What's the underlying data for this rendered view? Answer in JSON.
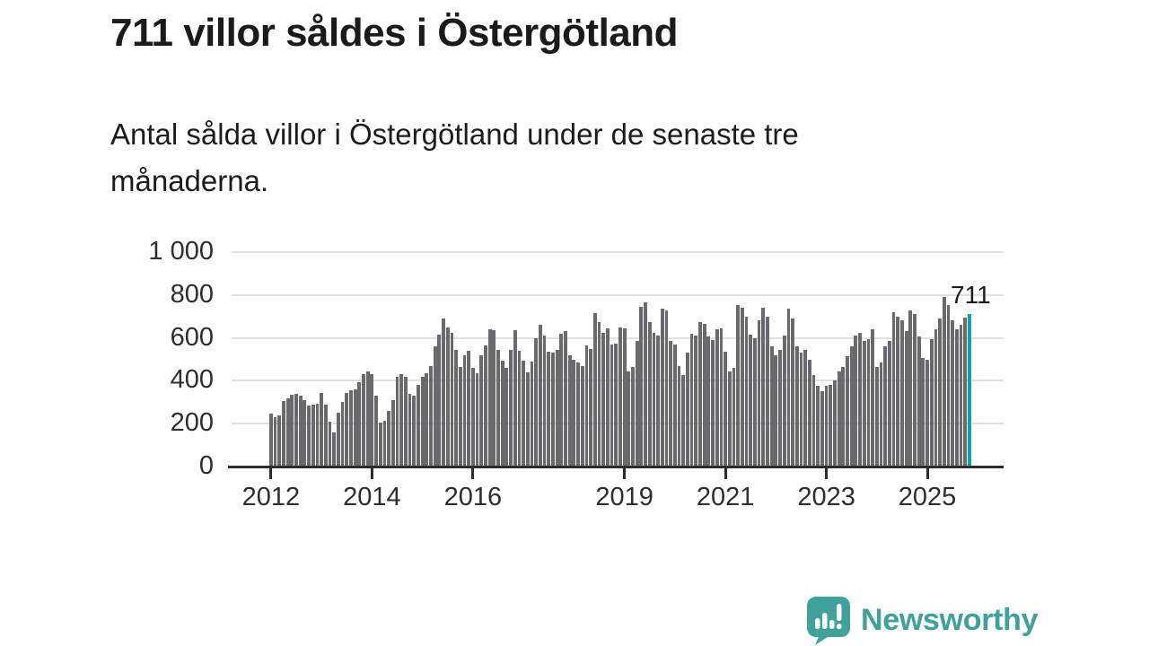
{
  "header": {
    "title": "711 villor såldes i Östergötland",
    "subtitle": "Antal sålda villor i Östergötland under de senaste tre månaderna."
  },
  "chart_data": {
    "type": "bar",
    "title": "711 villor såldes i Östergötland",
    "xlabel": "",
    "ylabel": "",
    "x_start": "2012-01",
    "x_end": "2025-11",
    "values": [
      245,
      230,
      240,
      305,
      320,
      335,
      340,
      330,
      310,
      285,
      290,
      295,
      345,
      290,
      210,
      160,
      250,
      300,
      345,
      355,
      360,
      395,
      430,
      445,
      430,
      330,
      205,
      215,
      260,
      310,
      420,
      430,
      420,
      340,
      330,
      380,
      420,
      435,
      470,
      560,
      615,
      690,
      650,
      625,
      545,
      465,
      520,
      540,
      460,
      435,
      520,
      565,
      640,
      635,
      545,
      495,
      460,
      545,
      635,
      540,
      495,
      440,
      490,
      600,
      660,
      610,
      535,
      530,
      545,
      620,
      630,
      520,
      500,
      485,
      470,
      565,
      550,
      715,
      675,
      625,
      645,
      570,
      575,
      650,
      645,
      445,
      465,
      585,
      745,
      765,
      675,
      625,
      610,
      735,
      730,
      585,
      570,
      470,
      425,
      530,
      620,
      610,
      675,
      665,
      605,
      590,
      640,
      645,
      535,
      445,
      460,
      755,
      740,
      700,
      615,
      600,
      680,
      740,
      700,
      560,
      520,
      545,
      610,
      735,
      690,
      560,
      530,
      545,
      500,
      425,
      375,
      350,
      375,
      380,
      400,
      445,
      465,
      515,
      560,
      610,
      625,
      585,
      595,
      640,
      465,
      485,
      560,
      585,
      720,
      700,
      680,
      630,
      730,
      710,
      605,
      505,
      500,
      595,
      640,
      690,
      790,
      755,
      680,
      640,
      660,
      695,
      711
    ],
    "highlight_index": 166,
    "highlight_value": 711,
    "annotation": "711",
    "ylim": [
      0,
      1000
    ],
    "yticks": [
      0,
      200,
      400,
      600,
      800,
      1000
    ],
    "ytick_labels": [
      "0",
      "200",
      "400",
      "600",
      "800",
      "1 000"
    ],
    "xtick_years": [
      2012,
      2014,
      2016,
      2019,
      2021,
      2023,
      2025
    ],
    "grid": "horizontal",
    "legend": "none",
    "bar_color": "#6a6a6e",
    "highlight_color": "#10a3a0"
  },
  "footer": {
    "brand": "Newsworthy",
    "brand_color": "#3fa19a",
    "logo_icon": "bar-chart-speech-bubble"
  }
}
